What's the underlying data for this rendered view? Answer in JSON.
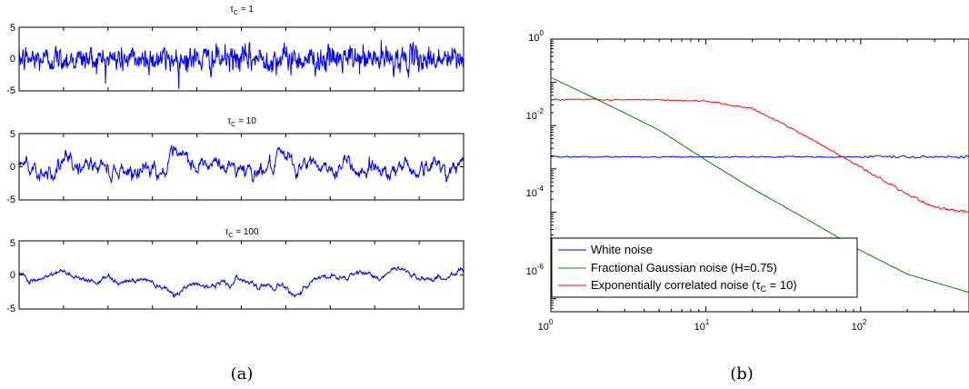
{
  "captions": {
    "a": "(a)",
    "b": "(b)"
  },
  "chart_data": [
    {
      "type": "line",
      "panel": "a",
      "subplots": [
        {
          "title_base": "τ",
          "title_sub": "C",
          "title_rest": " = 1",
          "tau": 1,
          "ylim": [
            -5,
            5
          ],
          "xlim": [
            0,
            1000
          ],
          "yticks": [
            5,
            0,
            -5
          ],
          "amp": 1.0,
          "color": "#0000ff"
        },
        {
          "title_base": "τ",
          "title_sub": "C",
          "title_rest": " = 10",
          "tau": 10,
          "ylim": [
            -5,
            5
          ],
          "xlim": [
            0,
            1000
          ],
          "yticks": [
            5,
            0,
            -5
          ],
          "amp": 1.0,
          "color": "#0000ff"
        },
        {
          "title_base": "τ",
          "title_sub": "C",
          "title_rest": " = 100",
          "tau": 100,
          "ylim": [
            -5,
            5
          ],
          "xlim": [
            0,
            1000
          ],
          "yticks": [
            5,
            0,
            -5
          ],
          "amp": 1.0,
          "color": "#0000ff"
        }
      ]
    },
    {
      "type": "line",
      "panel": "b",
      "xscale": "log",
      "yscale": "log",
      "xlim": [
        1,
        500
      ],
      "ylim": [
        5e-07,
        1
      ],
      "xticks": [
        {
          "base": "10",
          "exp": "0"
        },
        {
          "base": "10",
          "exp": "1"
        },
        {
          "base": "10",
          "exp": "2"
        }
      ],
      "yticks": [
        {
          "base": "10",
          "exp": "0"
        },
        {
          "base": "10",
          "exp": "-2"
        },
        {
          "base": "10",
          "exp": "-4"
        },
        {
          "base": "10",
          "exp": "-6"
        }
      ],
      "series": [
        {
          "name": "White noise",
          "color": "#0000ff",
          "x": [
            1,
            2,
            5,
            10,
            20,
            50,
            100,
            200,
            500
          ],
          "y": [
            0.0019,
            0.0019,
            0.0019,
            0.0019,
            0.0019,
            0.0019,
            0.0019,
            0.0019,
            0.0019
          ]
        },
        {
          "name": "Fractional Gaussian noise (H=0.75)",
          "color": "#008000",
          "x": [
            1,
            2,
            5,
            10,
            20,
            50,
            100,
            200,
            500
          ],
          "y": [
            0.13,
            0.04,
            0.0079,
            0.0016,
            0.00035,
            5.5e-05,
            1.3e-05,
            3.7e-06,
            1.4e-06
          ]
        },
        {
          "name_pre": "Exponentially correlated noise (",
          "name_base": "τ",
          "name_sub": "C",
          "name_post": " = 10)",
          "color": "#ff0000",
          "x": [
            1,
            2,
            5,
            10,
            20,
            30,
            50,
            100,
            200,
            300,
            500
          ],
          "y": [
            0.04,
            0.04,
            0.039,
            0.037,
            0.025,
            0.012,
            0.0045,
            0.0011,
            0.00026,
            0.00013,
            0.0001
          ]
        }
      ]
    }
  ]
}
